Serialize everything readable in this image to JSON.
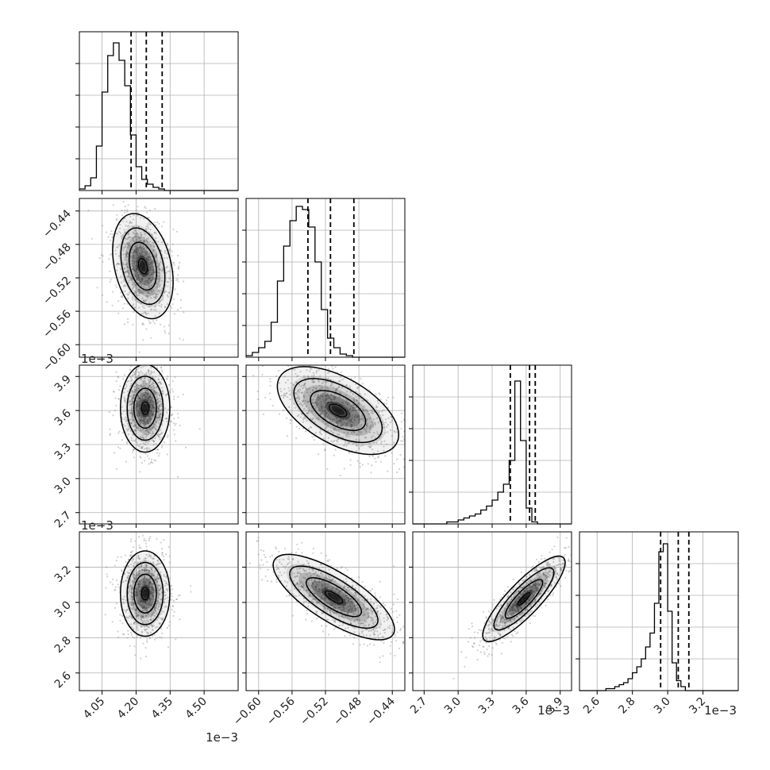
{
  "chart_data": {
    "type": "corner",
    "figure_title": "",
    "variables": [
      {
        "axis_label": "",
        "offset_text": "1e−3",
        "range": [
          3.95,
          4.65
        ],
        "ticks": [
          4.05,
          4.2,
          4.35,
          4.5
        ],
        "tick_labels": [
          "4.05",
          "4.20",
          "4.35",
          "4.50"
        ],
        "quantiles": [
          4.178,
          4.245,
          4.315
        ],
        "hist": {
          "bin_start": 3.95,
          "bin_width": 0.025,
          "counts": [
            1,
            3,
            8,
            28,
            62,
            85,
            93,
            82,
            66,
            35,
            15,
            7,
            4,
            2,
            1,
            0,
            0,
            0,
            0,
            0,
            0,
            0,
            0,
            0,
            0,
            0,
            0,
            0
          ]
        },
        "hist_ylim": [
          0,
          100
        ]
      },
      {
        "axis_label": "",
        "offset_text": "1e−3",
        "range": [
          -0.615,
          -0.425
        ],
        "ticks": [
          -0.6,
          -0.56,
          -0.52,
          -0.48,
          -0.44
        ],
        "tick_labels": [
          "−0.60",
          "−0.56",
          "−0.52",
          "−0.48",
          "−0.44"
        ],
        "quantiles": [
          -0.541,
          -0.514,
          -0.486
        ],
        "hist": {
          "bin_start": -0.615,
          "bin_width": 0.0075,
          "counts": [
            1,
            3,
            6,
            10,
            22,
            48,
            70,
            86,
            95,
            93,
            82,
            60,
            30,
            12,
            6,
            2,
            1,
            0,
            0,
            0,
            0,
            0,
            0,
            0,
            0,
            0
          ]
        },
        "hist_ylim": [
          0,
          100
        ]
      },
      {
        "axis_label": "",
        "offset_text": "1e−3",
        "range": [
          2.6,
          4.0
        ],
        "ticks": [
          2.7,
          3.0,
          3.3,
          3.6,
          3.9
        ],
        "tick_labels": [
          "2.7",
          "3.0",
          "3.3",
          "3.6",
          "3.9"
        ],
        "quantiles": [
          3.46,
          3.63,
          3.68
        ],
        "hist": {
          "bin_start": 2.6,
          "bin_width": 0.05,
          "counts": [
            0,
            0,
            0,
            0,
            0,
            0,
            1,
            1,
            2,
            3,
            4,
            5,
            7,
            9,
            12,
            16,
            20,
            32,
            72,
            42,
            8,
            1,
            0,
            0,
            0,
            0,
            0,
            0
          ]
        },
        "hist_ylim": [
          0,
          80
        ]
      },
      {
        "axis_label": "",
        "offset_text": "1e−3",
        "range": [
          2.5,
          3.4
        ],
        "ticks": [
          2.6,
          2.8,
          3.0,
          3.2
        ],
        "tick_labels": [
          "2.6",
          "2.8",
          "3.0",
          "3.2"
        ],
        "quantiles": [
          2.96,
          3.06,
          3.12
        ],
        "hist": {
          "bin_start": 2.5,
          "bin_width": 0.025,
          "counts": [
            0,
            0,
            0,
            0,
            0,
            0,
            1,
            1,
            2,
            3,
            4,
            6,
            9,
            12,
            16,
            22,
            29,
            44,
            70,
            74,
            40,
            14,
            5,
            2,
            0,
            0,
            0,
            0,
            0,
            0,
            0,
            0,
            0,
            0,
            0,
            0
          ]
        },
        "hist_ylim": [
          0,
          80
        ]
      }
    ],
    "pairs": [
      {
        "x_var": 0,
        "y_var": 1,
        "center": [
          4.23,
          -0.506
        ],
        "spread": [
          0.055,
          0.026
        ],
        "correlation": -0.3,
        "n_points": 900
      },
      {
        "x_var": 0,
        "y_var": 2,
        "center": [
          4.24,
          3.62
        ],
        "spread": [
          0.045,
          0.16
        ],
        "correlation": 0.0,
        "n_points": 900
      },
      {
        "x_var": 1,
        "y_var": 2,
        "center": [
          -0.505,
          3.6
        ],
        "spread": [
          0.03,
          0.16
        ],
        "correlation": -0.55,
        "n_points": 900
      },
      {
        "x_var": 0,
        "y_var": 3,
        "center": [
          4.24,
          3.05
        ],
        "spread": [
          0.045,
          0.1
        ],
        "correlation": 0.0,
        "n_points": 900
      },
      {
        "x_var": 1,
        "y_var": 3,
        "center": [
          -0.51,
          3.03
        ],
        "spread": [
          0.03,
          0.1
        ],
        "correlation": -0.75,
        "n_points": 900
      },
      {
        "x_var": 2,
        "y_var": 3,
        "center": [
          3.58,
          3.02
        ],
        "spread": [
          0.15,
          0.1
        ],
        "correlation": 0.85,
        "n_points": 900
      }
    ],
    "contour_levels": [
      1.0,
      1.6,
      2.2
    ],
    "grid": true
  }
}
